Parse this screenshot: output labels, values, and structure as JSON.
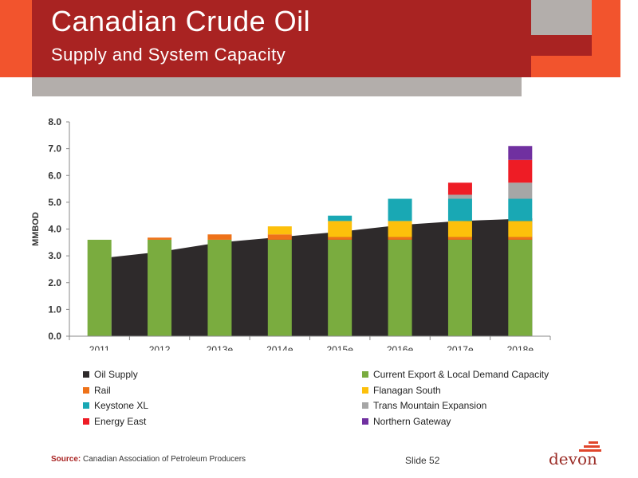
{
  "title": "Canadian Crude Oil",
  "subtitle": "Supply and System Capacity",
  "source_label": "Source:",
  "source_text": "Canadian Association of Petroleum Producers",
  "slide_number": "Slide 52",
  "logo_text": "devon",
  "colors": {
    "title_bar": "#a92322",
    "accent_orange": "#f2542d",
    "accent_gray": "#b3aeab"
  },
  "chart_data": {
    "type": "bar",
    "subtype": "stacked bar with area",
    "ylabel": "MMBOD",
    "ylim": [
      0,
      8
    ],
    "yticks": [
      "0.0",
      "1.0",
      "2.0",
      "3.0",
      "4.0",
      "5.0",
      "6.0",
      "7.0",
      "8.0"
    ],
    "categories": [
      "2011",
      "2012",
      "2013e",
      "2014e",
      "2015e",
      "2016e",
      "2017e",
      "2018e"
    ],
    "area_series": {
      "name": "Oil Supply",
      "color": "#2e2a2b",
      "x": [
        "2011",
        "2012",
        "2013e",
        "2014e",
        "2015e",
        "2016e",
        "2017e",
        "2018e"
      ],
      "values": [
        2.95,
        3.15,
        3.5,
        3.7,
        3.9,
        4.15,
        4.3,
        4.4
      ]
    },
    "series": [
      {
        "name": "Current Export & Local Demand Capacity",
        "color": "#7aac3f",
        "values": [
          3.6,
          3.6,
          3.6,
          3.6,
          3.6,
          3.6,
          3.6,
          3.6
        ]
      },
      {
        "name": "Rail",
        "color": "#ee7219",
        "values": [
          0,
          0.08,
          0.2,
          0.2,
          0.1,
          0.1,
          0.1,
          0.1
        ]
      },
      {
        "name": "Flanagan South",
        "color": "#fdc00b",
        "values": [
          0,
          0,
          0,
          0.3,
          0.6,
          0.6,
          0.6,
          0.6
        ]
      },
      {
        "name": "Keystone XL",
        "color": "#19a8b4",
        "values": [
          0,
          0,
          0,
          0,
          0.2,
          0.83,
          0.83,
          0.83
        ]
      },
      {
        "name": "Trans Mountain Expansion",
        "color": "#a6a6a6",
        "values": [
          0,
          0,
          0,
          0,
          0,
          0,
          0.15,
          0.6
        ]
      },
      {
        "name": "Energy East",
        "color": "#ee1c25",
        "values": [
          0,
          0,
          0,
          0,
          0,
          0,
          0.45,
          0.85
        ]
      },
      {
        "name": "Northern Gateway",
        "color": "#7030a0",
        "values": [
          0,
          0,
          0,
          0,
          0,
          0,
          0,
          0.52
        ]
      }
    ],
    "legend": [
      {
        "label": "Oil Supply",
        "color": "#2e2a2b"
      },
      {
        "label": "Current Export & Local Demand Capacity",
        "color": "#7aac3f"
      },
      {
        "label": "Rail",
        "color": "#ee7219"
      },
      {
        "label": "Flanagan South",
        "color": "#fdc00b"
      },
      {
        "label": "Keystone XL",
        "color": "#19a8b4"
      },
      {
        "label": "Trans Mountain Expansion",
        "color": "#a6a6a6"
      },
      {
        "label": "Energy East",
        "color": "#ee1c25"
      },
      {
        "label": "Northern Gateway",
        "color": "#7030a0"
      }
    ],
    "legend_position": "bottom",
    "grid": false
  }
}
